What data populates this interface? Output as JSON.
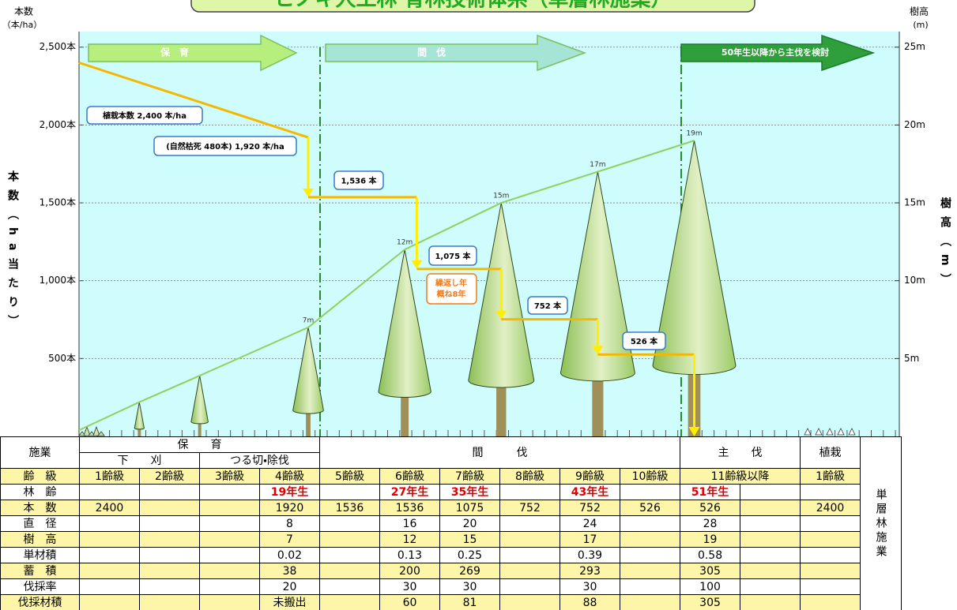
{
  "chart_data": {
    "type": "line",
    "title": "ヒノキ人工林 育林技術体系（単層林施業）",
    "y_label_top": "本数",
    "y_unit_top": "（本/ha）",
    "y_title": "本数（ha当たり）",
    "y2_label_top": "樹高",
    "y2_unit_top": "(m)",
    "y2_title": "樹高（m）",
    "xlim": [
      0,
      68
    ],
    "ylim": [
      0,
      2600
    ],
    "yticks": [
      {
        "value": 2500,
        "label": "2,500本"
      },
      {
        "value": 2000,
        "label": "2,000本"
      },
      {
        "value": 1500,
        "label": "1,500本"
      },
      {
        "value": 1000,
        "label": "1,000本"
      },
      {
        "value": 500,
        "label": "500本"
      }
    ],
    "y2lim": [
      0,
      26
    ],
    "y2ticks": [
      {
        "value": 25,
        "label": "25m"
      },
      {
        "value": 20,
        "label": "20m"
      },
      {
        "value": 15,
        "label": "15m"
      },
      {
        "value": 10,
        "label": "10m"
      },
      {
        "value": 5,
        "label": "5m"
      }
    ],
    "grid": true,
    "background": "#cffdfd",
    "phases": [
      {
        "label": "保　育",
        "color": "#b6ef7e"
      },
      {
        "label": "間　伐",
        "color": "#a6e4d6"
      },
      {
        "label": "50年生以降から主伐を検討",
        "color": "#2f9f3c"
      }
    ],
    "series": [
      {
        "color": "#f5b800",
        "drop_color": "#ffee00",
        "x": [
          0,
          19,
          19,
          28,
          28,
          35,
          35,
          43,
          43,
          51
        ],
        "values": [
          2400,
          1920,
          1536,
          1536,
          1075,
          1075,
          752,
          752,
          526,
          526
        ],
        "value_labels": [
          "植栽本数 2,400 本/ha",
          "(自然枯死 480本) 1,920 本/ha",
          "1,536 本",
          null,
          "1,075 本",
          null,
          "752 本",
          null,
          "526 本",
          null
        ]
      },
      {
        "axis": "y2",
        "color": "#8fd15a",
        "tree_color": "#a08f58",
        "x": [
          0,
          5,
          10,
          19,
          27,
          35,
          43,
          51
        ],
        "values": [
          0.4,
          2.2,
          3.9,
          7,
          12,
          15,
          17,
          19
        ],
        "value_labels": [
          null,
          null,
          null,
          "7m",
          "12m",
          "15m",
          "17m",
          "19m"
        ]
      }
    ],
    "annotations": [
      "繰返し年",
      "概ね8年"
    ]
  },
  "table": {
    "header": {
      "operation": "施業",
      "nurture": "保　　育",
      "weeding": "下　　刈",
      "vine": "つる切・除伐",
      "thinning": "間　　　伐",
      "final": "主　　伐",
      "planting": "植栽",
      "system": "単層林施業"
    },
    "rows": [
      {
        "label": "齢　級",
        "cells": [
          "1齢級",
          "2齢級",
          "3齢級",
          "4齢級",
          "5齢級",
          "6齢級",
          "7齢級",
          "8齢級",
          "9齢級",
          "10齢級",
          "11齢級以降",
          "1齢級"
        ]
      },
      {
        "label": "林　齢",
        "cells": [
          null,
          null,
          null,
          "19年生",
          null,
          "27年生",
          "35年生",
          null,
          "43年生",
          null,
          "51年生",
          null,
          null
        ]
      },
      {
        "label": "本　数",
        "cells": [
          2400,
          null,
          null,
          1920,
          1536,
          1536,
          1075,
          752,
          752,
          526,
          526,
          null,
          2400
        ]
      },
      {
        "label": "直　径",
        "cells": [
          null,
          null,
          null,
          8,
          null,
          16,
          20,
          null,
          24,
          null,
          28,
          null,
          null
        ]
      },
      {
        "label": "樹　高",
        "cells": [
          null,
          null,
          null,
          7,
          null,
          12,
          15,
          null,
          17,
          null,
          19,
          null,
          null
        ]
      },
      {
        "label": "単材積",
        "cells": [
          null,
          null,
          null,
          0.02,
          null,
          0.13,
          0.25,
          null,
          0.39,
          null,
          0.58,
          null,
          null
        ]
      },
      {
        "label": "蓄　積",
        "cells": [
          null,
          null,
          null,
          38,
          null,
          200,
          269,
          null,
          293,
          null,
          305,
          null,
          null
        ]
      },
      {
        "label": "伐採率",
        "cells": [
          null,
          null,
          null,
          20,
          null,
          30,
          30,
          null,
          30,
          null,
          100,
          null,
          null
        ]
      },
      {
        "label": "伐採材積",
        "cells": [
          null,
          null,
          null,
          "未搬出",
          null,
          60,
          81,
          null,
          88,
          null,
          305,
          null,
          null
        ]
      }
    ]
  }
}
